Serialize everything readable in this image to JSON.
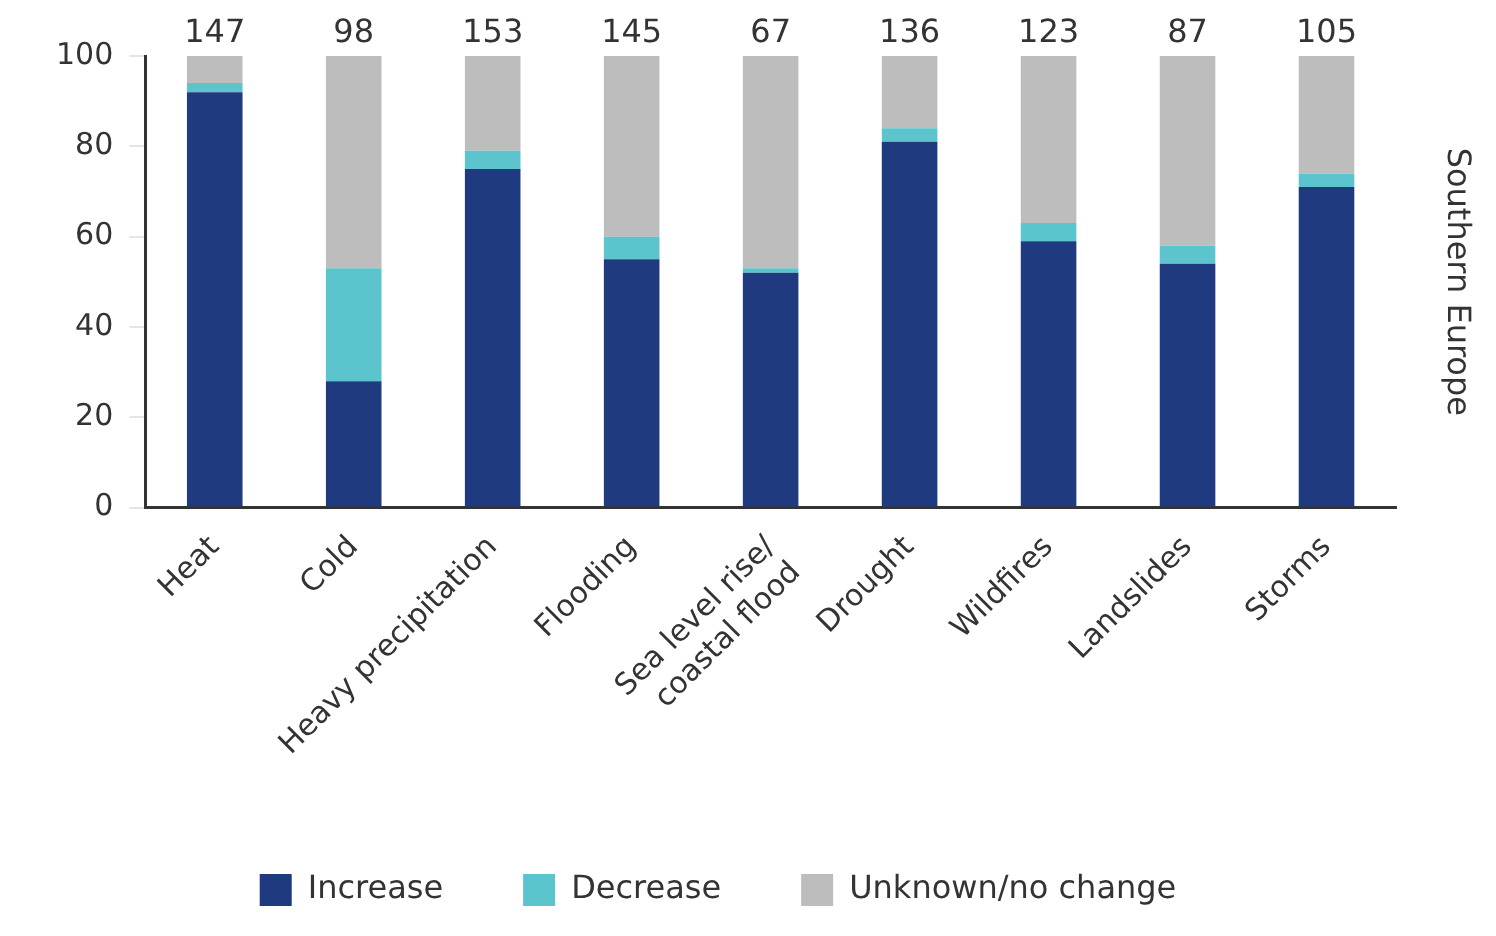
{
  "chart_data": {
    "type": "bar",
    "stacked": true,
    "y2label": "Southern Europe",
    "categories": [
      "Heat",
      "Cold",
      "Heavy precipitation",
      "Flooding",
      "Sea level rise/\ncoastal flood",
      "Drought",
      "Wildfires",
      "Landslides",
      "Storms"
    ],
    "series": [
      {
        "name": "Increase",
        "color": "#1f3a7f",
        "values": [
          92,
          28,
          75,
          55,
          52,
          81,
          59,
          54,
          71
        ]
      },
      {
        "name": "Decrease",
        "color": "#5bc4cc",
        "values": [
          2,
          25,
          4,
          5,
          1,
          3,
          4,
          4,
          3
        ]
      },
      {
        "name": "Unknown/no change",
        "color": "#bdbdbd",
        "values": [
          6,
          47,
          21,
          40,
          47,
          16,
          37,
          42,
          26
        ]
      }
    ],
    "ylim": [
      0,
      100
    ],
    "yticks": [
      0,
      20,
      40,
      60,
      80,
      100
    ],
    "grid": false,
    "legend": "bottom",
    "annotations": [
      {
        "text": "147",
        "x": "Heat",
        "y": 100
      },
      {
        "text": "98",
        "x": "Cold",
        "y": 100
      },
      {
        "text": "153",
        "x": "Heavy precipitation",
        "y": 100
      },
      {
        "text": "145",
        "x": "Flooding",
        "y": 100
      },
      {
        "text": "67",
        "x": "Sea level rise/\ncoastal flood",
        "y": 100
      },
      {
        "text": "136",
        "x": "Drought",
        "y": 100
      },
      {
        "text": "123",
        "x": "Wildfires",
        "y": 100
      },
      {
        "text": "87",
        "x": "Landslides",
        "y": 100
      },
      {
        "text": "105",
        "x": "Storms",
        "y": 100
      }
    ]
  }
}
